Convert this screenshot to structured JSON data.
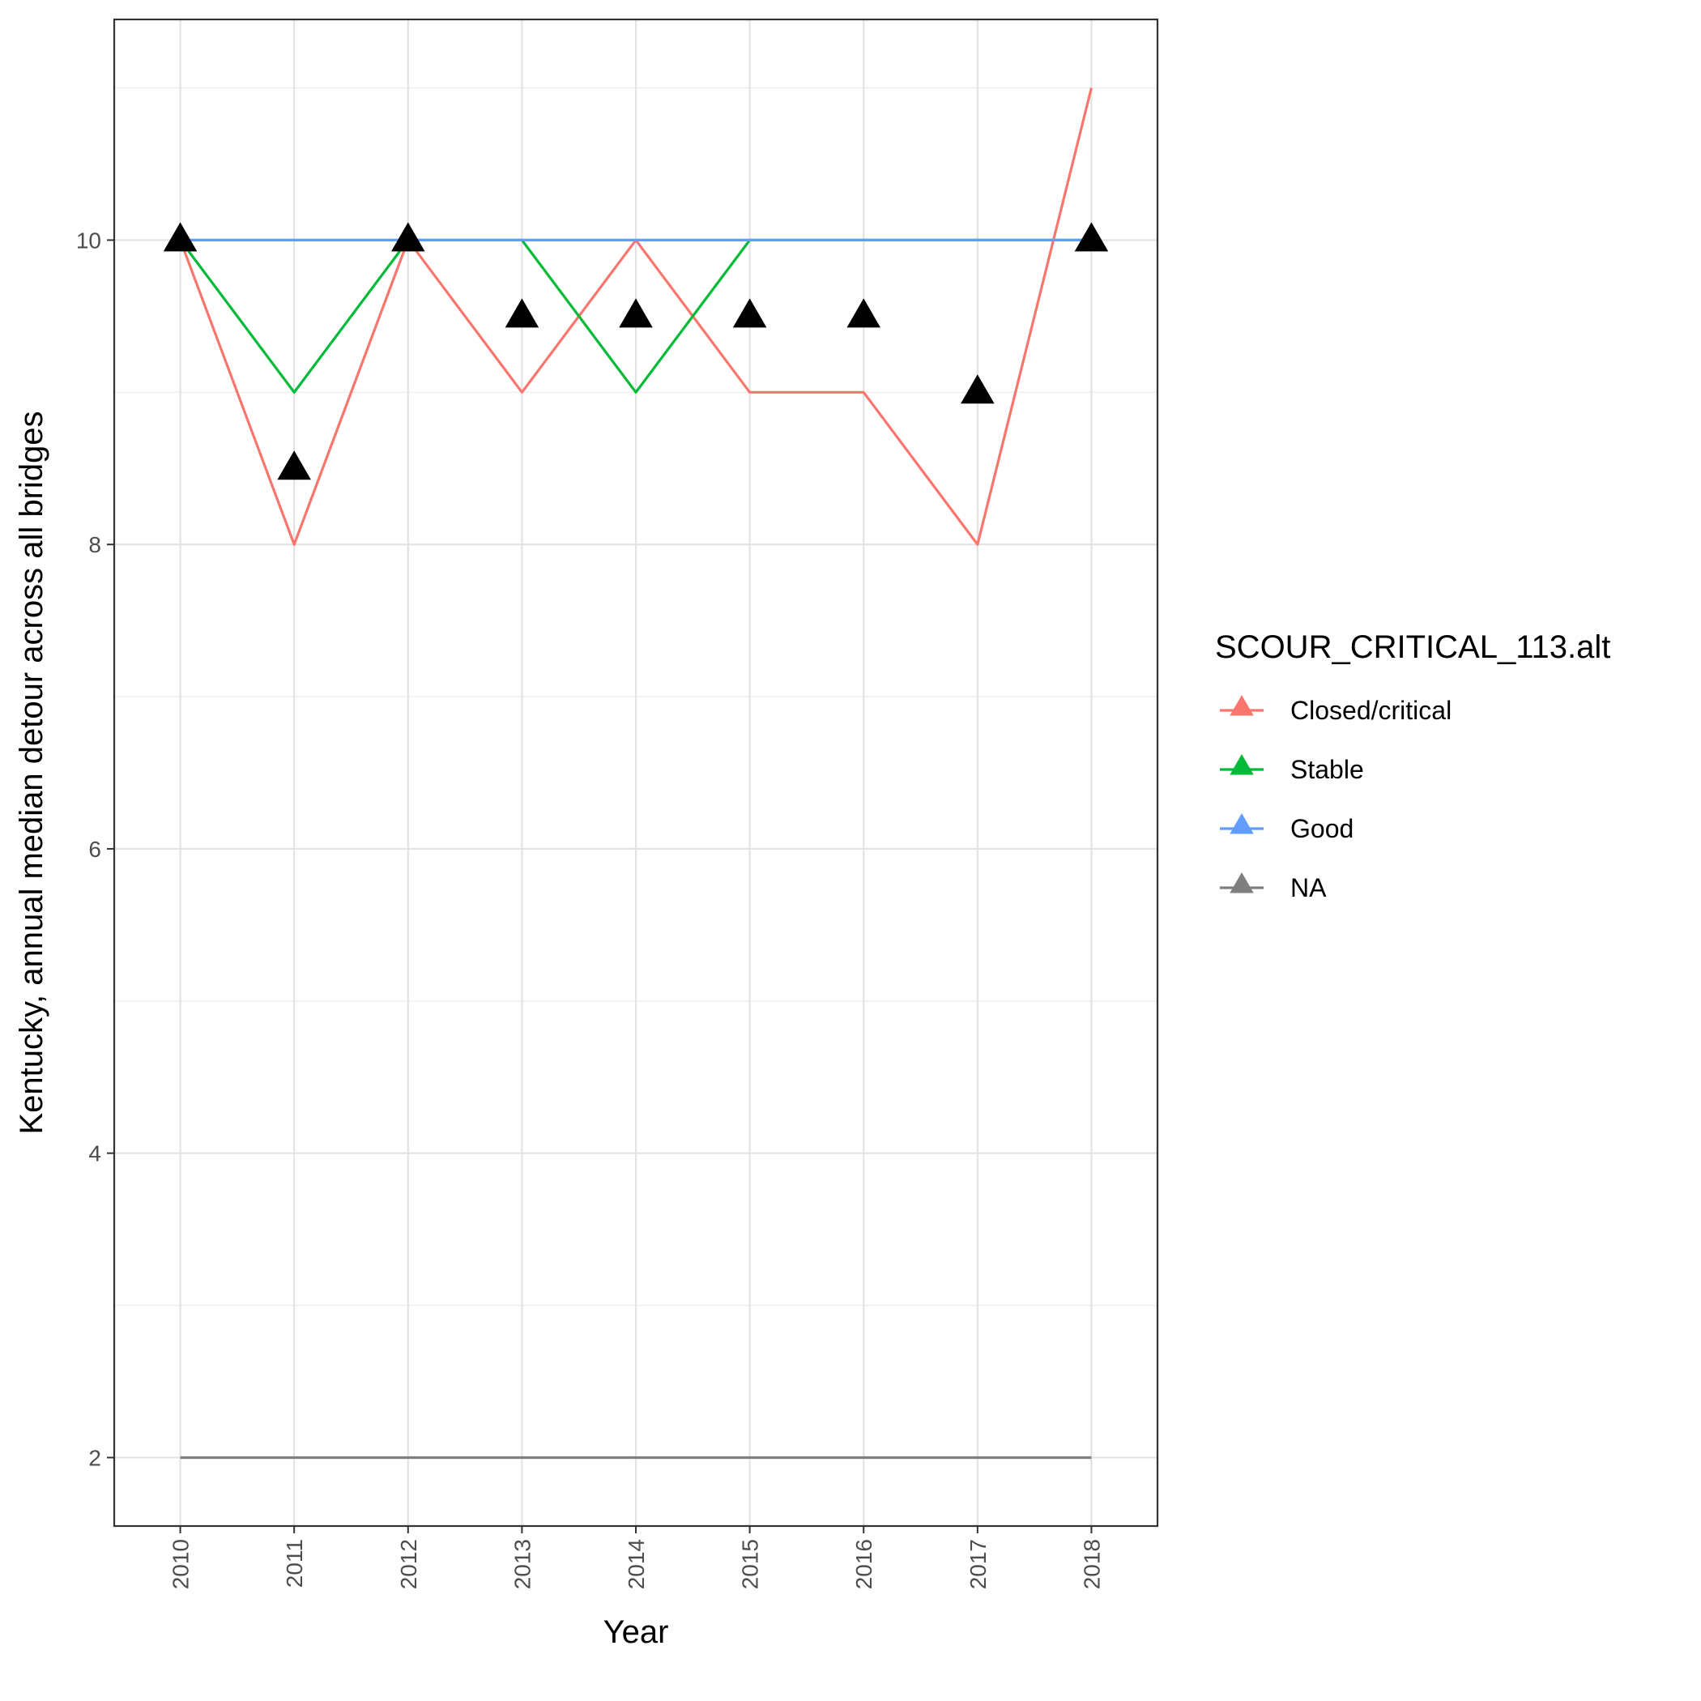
{
  "chart_data": {
    "type": "line",
    "title": "",
    "xlabel": "Year",
    "ylabel": "Kentucky, annual median detour across all bridges",
    "x": [
      "2010",
      "2011",
      "2012",
      "2013",
      "2014",
      "2015",
      "2016",
      "2017",
      "2018"
    ],
    "xlim": [
      2009.42,
      2018.58
    ],
    "ylim": [
      1.55,
      11.45
    ],
    "y_ticks": [
      2,
      4,
      6,
      8,
      10
    ],
    "y_minor_ticks": [
      3,
      5,
      7,
      9,
      11
    ],
    "grid": true,
    "legend": {
      "title": "SCOUR_CRITICAL_113.alt",
      "placement": "right",
      "marker": "triangle"
    },
    "series": [
      {
        "name": "Closed/critical",
        "color": "#F8766D",
        "values": [
          10,
          8,
          10,
          9,
          10,
          9,
          9,
          8,
          11
        ]
      },
      {
        "name": "Stable",
        "color": "#00BA38",
        "values": [
          10,
          9,
          10,
          10,
          9,
          10,
          10,
          10,
          10
        ]
      },
      {
        "name": "Good",
        "color": "#619CFF",
        "values": [
          10,
          10,
          10,
          10,
          10,
          10,
          10,
          10,
          10
        ]
      },
      {
        "name": "NA",
        "color": "#7F7F7F",
        "values": [
          2,
          2,
          2,
          2,
          2,
          2,
          2,
          2,
          2
        ]
      }
    ],
    "markers": {
      "shape": "triangle",
      "color": "#000000",
      "values": [
        10,
        8.5,
        10,
        9.5,
        9.5,
        9.5,
        9.5,
        9,
        10
      ]
    }
  }
}
